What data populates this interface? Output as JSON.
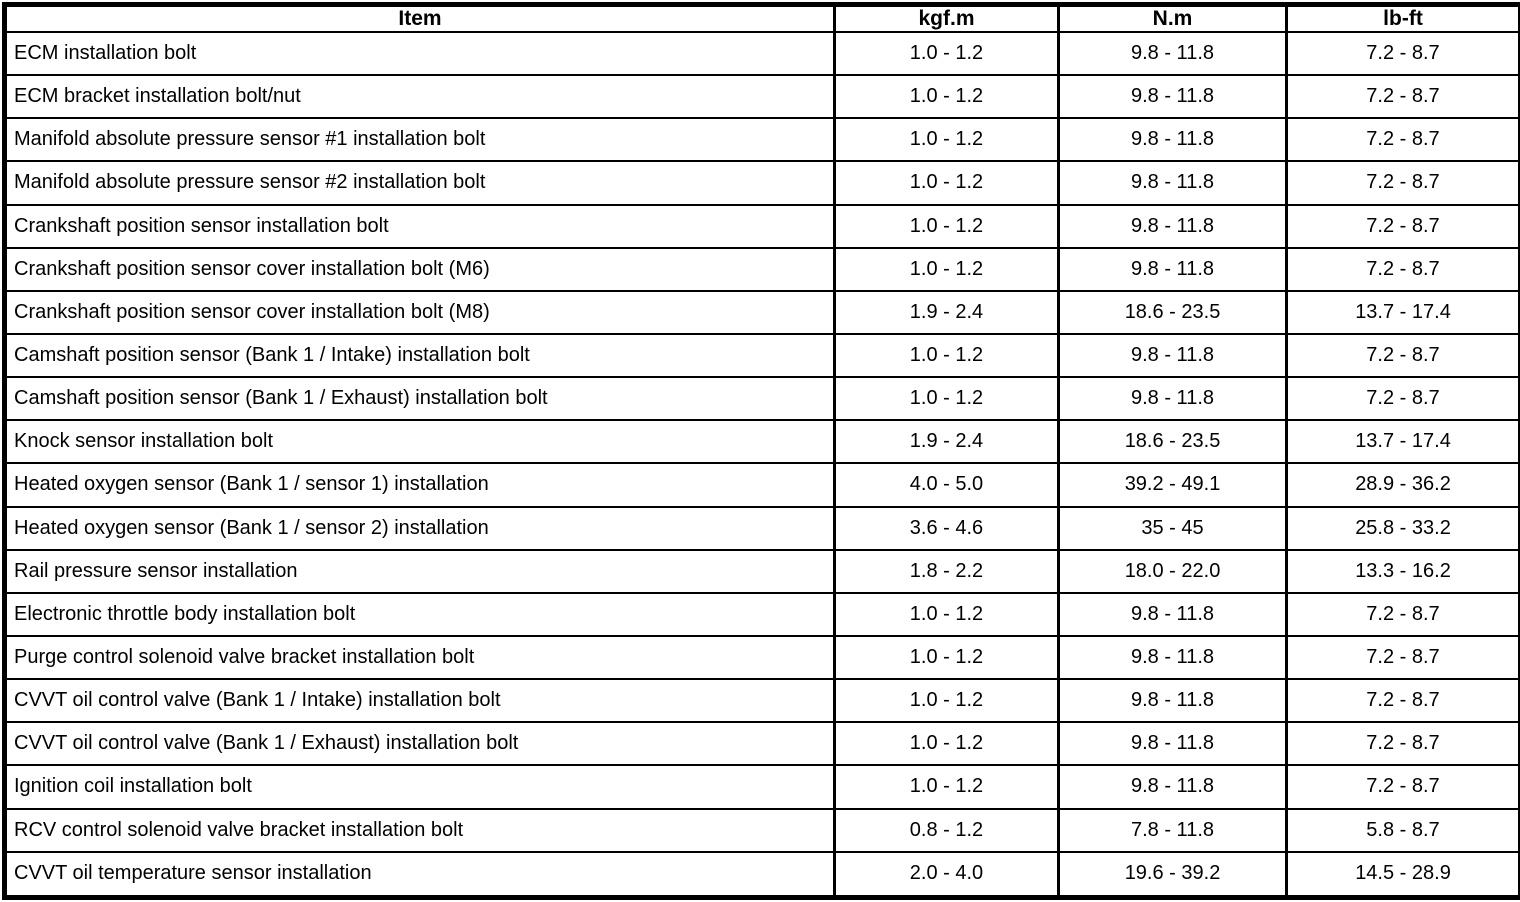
{
  "colors": {
    "border": "#000000",
    "text": "#000000",
    "background": "#ffffff"
  },
  "table": {
    "headers": [
      "Item",
      "kgf.m",
      "N.m",
      "lb-ft"
    ],
    "rows": [
      {
        "item": "ECM installation bolt",
        "kgfm": "1.0 - 1.2",
        "nm": "9.8 - 11.8",
        "lbft": "7.2 - 8.7"
      },
      {
        "item": "ECM bracket installation bolt/nut",
        "kgfm": "1.0 - 1.2",
        "nm": "9.8 - 11.8",
        "lbft": "7.2 - 8.7"
      },
      {
        "item": "Manifold absolute pressure sensor #1 installation bolt",
        "kgfm": "1.0 - 1.2",
        "nm": "9.8 - 11.8",
        "lbft": "7.2 - 8.7"
      },
      {
        "item": "Manifold absolute pressure sensor #2 installation bolt",
        "kgfm": "1.0 - 1.2",
        "nm": "9.8 - 11.8",
        "lbft": "7.2 - 8.7"
      },
      {
        "item": "Crankshaft position sensor installation bolt",
        "kgfm": "1.0 - 1.2",
        "nm": "9.8 - 11.8",
        "lbft": "7.2 - 8.7"
      },
      {
        "item": "Crankshaft position sensor cover installation bolt (M6)",
        "kgfm": "1.0 - 1.2",
        "nm": "9.8 - 11.8",
        "lbft": "7.2 - 8.7"
      },
      {
        "item": "Crankshaft position sensor cover installation bolt (M8)",
        "kgfm": "1.9 - 2.4",
        "nm": "18.6 - 23.5",
        "lbft": "13.7 - 17.4"
      },
      {
        "item": "Camshaft position sensor (Bank 1 / Intake) installation bolt",
        "kgfm": "1.0 - 1.2",
        "nm": "9.8 - 11.8",
        "lbft": "7.2 - 8.7"
      },
      {
        "item": "Camshaft position sensor (Bank 1 / Exhaust) installation bolt",
        "kgfm": "1.0 - 1.2",
        "nm": "9.8 - 11.8",
        "lbft": "7.2 - 8.7"
      },
      {
        "item": "Knock sensor installation bolt",
        "kgfm": "1.9 - 2.4",
        "nm": "18.6 - 23.5",
        "lbft": "13.7 - 17.4"
      },
      {
        "item": "Heated oxygen sensor (Bank 1 / sensor 1) installation",
        "kgfm": "4.0 - 5.0",
        "nm": "39.2 - 49.1",
        "lbft": "28.9 - 36.2"
      },
      {
        "item": "Heated oxygen sensor (Bank 1 / sensor 2) installation",
        "kgfm": "3.6 - 4.6",
        "nm": "35 - 45",
        "lbft": "25.8 - 33.2"
      },
      {
        "item": "Rail pressure sensor installation",
        "kgfm": "1.8 - 2.2",
        "nm": "18.0 - 22.0",
        "lbft": "13.3 - 16.2"
      },
      {
        "item": "Electronic throttle body installation bolt",
        "kgfm": "1.0 - 1.2",
        "nm": "9.8 - 11.8",
        "lbft": "7.2 - 8.7"
      },
      {
        "item": "Purge control solenoid valve bracket installation bolt",
        "kgfm": "1.0 - 1.2",
        "nm": "9.8 - 11.8",
        "lbft": "7.2 - 8.7"
      },
      {
        "item": "CVVT oil control valve (Bank 1 / Intake) installation bolt",
        "kgfm": "1.0 - 1.2",
        "nm": "9.8 - 11.8",
        "lbft": "7.2 - 8.7"
      },
      {
        "item": "CVVT oil control valve (Bank 1 / Exhaust) installation bolt",
        "kgfm": "1.0 - 1.2",
        "nm": "9.8 - 11.8",
        "lbft": "7.2 - 8.7"
      },
      {
        "item": "Ignition coil installation bolt",
        "kgfm": "1.0 - 1.2",
        "nm": "9.8 - 11.8",
        "lbft": "7.2 - 8.7"
      },
      {
        "item": "RCV control solenoid valve bracket installation bolt",
        "kgfm": "0.8 - 1.2",
        "nm": "7.8 - 11.8",
        "lbft": "5.8 - 8.7"
      },
      {
        "item": "CVVT oil temperature sensor installation",
        "kgfm": "2.0 - 4.0",
        "nm": "19.6 - 39.2",
        "lbft": "14.5 - 28.9"
      }
    ]
  }
}
